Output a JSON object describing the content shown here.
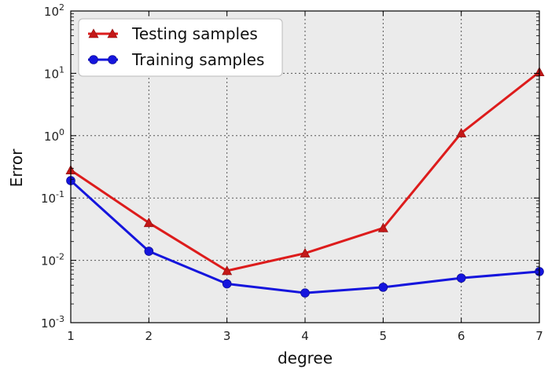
{
  "chart_data": {
    "type": "line",
    "title": "",
    "xlabel": "degree",
    "ylabel": "Error",
    "yscale": "log",
    "xlim": [
      1,
      7
    ],
    "ylim": [
      0.001,
      100
    ],
    "x": [
      1,
      2,
      3,
      4,
      5,
      6,
      7
    ],
    "x_ticks": [
      "1",
      "2",
      "3",
      "4",
      "5",
      "6",
      "7"
    ],
    "y_ticks": [
      {
        "base": "10",
        "exp": "-3",
        "value": 0.001
      },
      {
        "base": "10",
        "exp": "-2",
        "value": 0.01
      },
      {
        "base": "10",
        "exp": "-1",
        "value": 0.1
      },
      {
        "base": "10",
        "exp": "0",
        "value": 1
      },
      {
        "base": "10",
        "exp": "1",
        "value": 10
      },
      {
        "base": "10",
        "exp": "2",
        "value": 100
      }
    ],
    "grid": true,
    "legend_position": "top-left",
    "background": "#ebebeb",
    "series": [
      {
        "name": "Testing samples",
        "color": "#dd1c1c",
        "marker": "triangle",
        "values": [
          0.28,
          0.04,
          0.0068,
          0.013,
          0.033,
          1.1,
          10.5
        ]
      },
      {
        "name": "Training samples",
        "color": "#1515dd",
        "marker": "circle",
        "values": [
          0.19,
          0.014,
          0.0042,
          0.003,
          0.0037,
          0.0052,
          0.0066
        ]
      }
    ]
  }
}
